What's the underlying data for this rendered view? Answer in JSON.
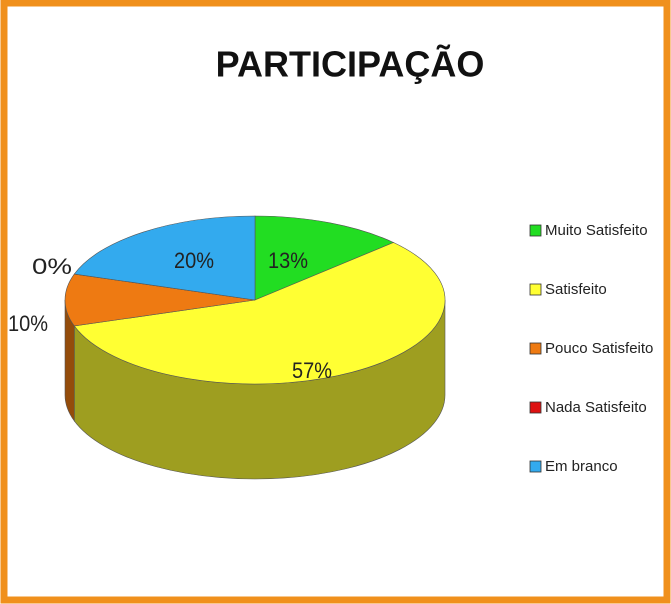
{
  "chart_data": {
    "type": "pie3d",
    "title": "PARTICIPAÇÃO",
    "categories": [
      "Muito Satisfeito",
      "Satisfeito",
      "Pouco Satisfeito",
      "Nada Satisfeito",
      "Em branco"
    ],
    "values": [
      13,
      57,
      10,
      0,
      20
    ],
    "value_labels": [
      "13%",
      "57%",
      "10%",
      "0%",
      "20%"
    ],
    "colors": [
      "#22dd22",
      "#ffff33",
      "#ee7a12",
      "#dd1111",
      "#33aaee"
    ],
    "legend": "right"
  }
}
